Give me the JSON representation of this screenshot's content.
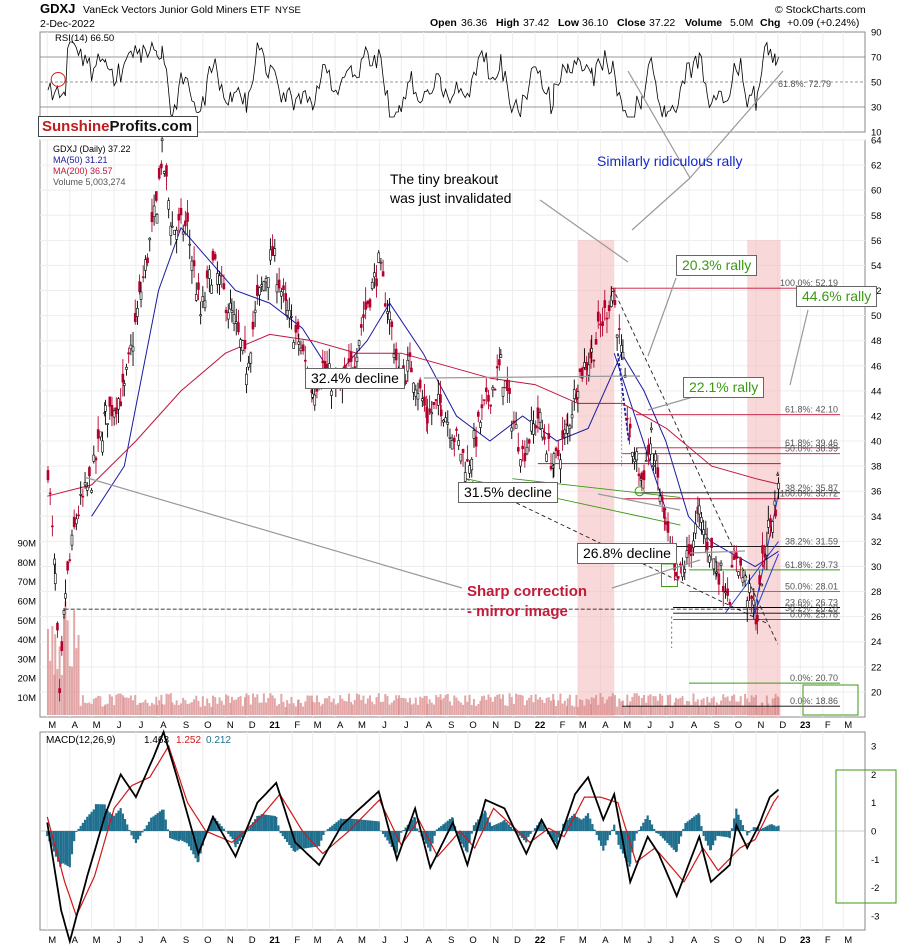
{
  "header": {
    "symbol": "GDXJ",
    "name": "VanEck Vectors Junior Gold Miners ETF",
    "exchange": "NYSE",
    "date": "2-Dec-2022",
    "open_label": "Open",
    "open": "36.36",
    "high_label": "High",
    "high": "37.42",
    "low_label": "Low",
    "low": "36.10",
    "close_label": "Close",
    "close": "37.22",
    "volume_label": "Volume",
    "volume": "5.0M",
    "chg_label": "Chg",
    "chg": "+0.09 (+0.24%)",
    "watermark": "© StockCharts.com"
  },
  "logo": {
    "part1": "Sunshine",
    "part2": "Profits.com"
  },
  "colors": {
    "price": "#000000",
    "ma50": "#1a1aa0",
    "ma200": "#c0143c",
    "volume": "#d98a8a",
    "macd": "#000000",
    "signal": "#d01818",
    "histogram": "#1f6f8f",
    "highlight": "#f2b8b8",
    "fib_green": "#3a9a12"
  },
  "chart_data": [
    {
      "type": "line",
      "panel": "RSI",
      "legend": "RSI(14) 66.50",
      "ylim": [
        10,
        90
      ],
      "yticks": [
        10,
        30,
        50,
        70,
        90
      ],
      "levels": [
        70,
        50,
        30
      ],
      "current": 66.5,
      "annotation": "61.8%: 72.79"
    },
    {
      "type": "candlestick",
      "panel": "price",
      "legend": [
        "GDXJ (Daily) 37.22",
        "MA(50) 31.21",
        "MA(200) 36.57",
        "Volume 5,003,274"
      ],
      "ylim": [
        18,
        64
      ],
      "yticks": [
        20,
        22,
        24,
        26,
        28,
        30,
        32,
        34,
        36,
        38,
        40,
        42,
        44,
        46,
        48,
        50,
        52,
        54,
        56,
        58,
        60,
        62,
        64
      ],
      "volume_ticks": [
        "10M",
        "20M",
        "30M",
        "40M",
        "50M",
        "60M",
        "70M",
        "80M",
        "90M"
      ],
      "x_labels": [
        "M",
        "A",
        "M",
        "J",
        "J",
        "A",
        "S",
        "O",
        "N",
        "D",
        "21",
        "F",
        "M",
        "A",
        "M",
        "J",
        "J",
        "A",
        "S",
        "O",
        "N",
        "D",
        "22",
        "F",
        "M",
        "A",
        "M",
        "J",
        "J",
        "A",
        "S",
        "O",
        "N",
        "D",
        "23",
        "F",
        "M"
      ],
      "series": [
        {
          "name": "GDXJ",
          "points": [
            [
              "2020-03-02",
              38
            ],
            [
              "2020-03-12",
              29
            ],
            [
              "2020-03-18",
              19
            ],
            [
              "2020-03-26",
              28
            ],
            [
              "2020-04-10",
              34
            ],
            [
              "2020-05-01",
              37
            ],
            [
              "2020-05-20",
              42
            ],
            [
              "2020-06-15",
              44
            ],
            [
              "2020-07-08",
              52
            ],
            [
              "2020-07-30",
              59
            ],
            [
              "2020-08-06",
              63
            ],
            [
              "2020-08-20",
              57
            ],
            [
              "2020-09-10",
              57
            ],
            [
              "2020-09-28",
              50
            ],
            [
              "2020-10-15",
              54
            ],
            [
              "2020-11-10",
              50
            ],
            [
              "2020-11-30",
              46
            ],
            [
              "2020-12-15",
              51
            ],
            [
              "2021-01-05",
              55
            ],
            [
              "2021-01-25",
              50
            ],
            [
              "2021-02-10",
              48
            ],
            [
              "2021-03-01",
              44
            ],
            [
              "2021-03-15",
              46
            ],
            [
              "2021-04-05",
              44
            ],
            [
              "2021-04-25",
              46
            ],
            [
              "2021-05-10",
              50
            ],
            [
              "2021-05-31",
              54
            ],
            [
              "2021-06-15",
              50
            ],
            [
              "2021-06-28",
              45
            ],
            [
              "2021-07-15",
              46
            ],
            [
              "2021-08-06",
              42
            ],
            [
              "2021-08-25",
              43
            ],
            [
              "2021-09-15",
              40
            ],
            [
              "2021-09-30",
              38
            ],
            [
              "2021-10-20",
              42
            ],
            [
              "2021-11-15",
              46
            ],
            [
              "2021-11-30",
              42
            ],
            [
              "2021-12-15",
              39
            ],
            [
              "2022-01-05",
              42
            ],
            [
              "2022-01-27",
              38
            ],
            [
              "2022-02-15",
              41
            ],
            [
              "2022-03-01",
              45
            ],
            [
              "2022-03-20",
              47
            ],
            [
              "2022-04-18",
              52
            ],
            [
              "2022-05-02",
              46
            ],
            [
              "2022-05-12",
              40
            ],
            [
              "2022-05-28",
              37
            ],
            [
              "2022-06-10",
              40
            ],
            [
              "2022-06-30",
              33
            ],
            [
              "2022-07-14",
              28.5
            ],
            [
              "2022-08-01",
              31
            ],
            [
              "2022-08-15",
              34
            ],
            [
              "2022-08-26",
              32
            ],
            [
              "2022-09-08",
              30
            ],
            [
              "2022-09-26",
              28
            ],
            [
              "2022-10-05",
              31
            ],
            [
              "2022-10-20",
              28
            ],
            [
              "2022-11-03",
              26
            ],
            [
              "2022-11-10",
              30
            ],
            [
              "2022-11-18",
              33
            ],
            [
              "2022-11-28",
              35
            ],
            [
              "2022-12-02",
              37.22
            ]
          ]
        },
        {
          "name": "MA(50)",
          "points": [
            [
              "2020-05-01",
              34
            ],
            [
              "2020-06-15",
              38
            ],
            [
              "2020-08-01",
              52
            ],
            [
              "2020-09-01",
              57
            ],
            [
              "2020-10-01",
              55
            ],
            [
              "2020-11-15",
              52
            ],
            [
              "2021-01-01",
              51
            ],
            [
              "2021-02-15",
              49
            ],
            [
              "2021-03-31",
              45
            ],
            [
              "2021-05-15",
              48
            ],
            [
              "2021-06-15",
              51
            ],
            [
              "2021-07-31",
              47
            ],
            [
              "2021-09-15",
              42
            ],
            [
              "2021-10-31",
              40
            ],
            [
              "2021-12-15",
              42
            ],
            [
              "2022-01-31",
              40
            ],
            [
              "2022-03-15",
              41
            ],
            [
              "2022-04-30",
              47
            ],
            [
              "2022-05-31",
              44
            ],
            [
              "2022-06-30",
              40
            ],
            [
              "2022-07-31",
              34
            ],
            [
              "2022-08-31",
              32
            ],
            [
              "2022-09-30",
              31
            ],
            [
              "2022-10-31",
              30
            ],
            [
              "2022-12-02",
              31.21
            ]
          ]
        },
        {
          "name": "MA(200)",
          "points": [
            [
              "2020-03-01",
              35.6
            ],
            [
              "2020-05-01",
              36.5
            ],
            [
              "2020-07-01",
              40
            ],
            [
              "2020-09-01",
              44
            ],
            [
              "2020-11-01",
              47
            ],
            [
              "2021-01-01",
              48.5
            ],
            [
              "2021-03-01",
              48
            ],
            [
              "2021-05-01",
              47
            ],
            [
              "2021-07-01",
              47
            ],
            [
              "2021-09-01",
              46
            ],
            [
              "2021-11-01",
              45
            ],
            [
              "2022-01-01",
              44.5
            ],
            [
              "2022-03-01",
              43
            ],
            [
              "2022-05-01",
              43
            ],
            [
              "2022-07-01",
              41
            ],
            [
              "2022-09-01",
              38
            ],
            [
              "2022-11-01",
              37
            ],
            [
              "2022-12-02",
              36.57
            ]
          ]
        }
      ],
      "fibonacci_labels": [
        {
          "text": "100.0%: 52.19",
          "y": 52.19
        },
        {
          "text": "61.8%: 42.10",
          "y": 42.1
        },
        {
          "text": "61.8%: 39.46",
          "y": 39.46
        },
        {
          "text": "50.0%: 38.99",
          "y": 38.99
        },
        {
          "text": "38.2%: 35.87",
          "y": 35.87
        },
        {
          "text": "100.0%: 35.72",
          "y": 35.4
        },
        {
          "text": "38.2%: 31.59",
          "y": 31.59
        },
        {
          "text": "61.8%: 29.73",
          "y": 29.73
        },
        {
          "text": "50.0%: 28.01",
          "y": 28.01
        },
        {
          "text": "23.6%: 26.73",
          "y": 26.73
        },
        {
          "text": "38.2%: 26.28",
          "y": 26.28
        },
        {
          "text": "0.0%: 25.78",
          "y": 25.78
        },
        {
          "text": "0.0%: 20.70",
          "y": 20.7
        },
        {
          "text": "0.0%: 18.86",
          "y": 18.86
        }
      ],
      "annotations": [
        "Similarly ridiculous rally",
        "The tiny breakout\nwas just invalidated",
        "20.3% rally",
        "44.6% rally",
        "32.4% decline",
        "22.1% rally",
        "31.5% decline",
        "26.8% decline",
        "Sharp correction\n- mirror image"
      ]
    },
    {
      "type": "line",
      "panel": "MACD",
      "legend": {
        "name": "MACD(12,26,9)",
        "macd": "1.463",
        "signal": "1.252",
        "histogram": "0.212"
      },
      "ylim": [
        -3.5,
        3.5
      ],
      "yticks": [
        3,
        2,
        1,
        0,
        -1,
        -2,
        -3
      ],
      "series": [
        {
          "name": "MACD",
          "points": [
            [
              "2020-03-01",
              0.3
            ],
            [
              "2020-03-20",
              -2.8
            ],
            [
              "2020-04-01",
              -3.9
            ],
            [
              "2020-04-25",
              -1.6
            ],
            [
              "2020-05-20",
              0.6
            ],
            [
              "2020-06-10",
              2.0
            ],
            [
              "2020-07-01",
              1.2
            ],
            [
              "2020-07-25",
              2.6
            ],
            [
              "2020-08-08",
              3.5
            ],
            [
              "2020-08-31",
              1.5
            ],
            [
              "2020-09-25",
              -0.8
            ],
            [
              "2020-10-15",
              0.5
            ],
            [
              "2020-11-15",
              -0.9
            ],
            [
              "2020-12-15",
              1.0
            ],
            [
              "2021-01-10",
              1.7
            ],
            [
              "2021-02-05",
              -0.4
            ],
            [
              "2021-03-10",
              -1.2
            ],
            [
              "2021-04-10",
              0.2
            ],
            [
              "2021-05-01",
              0.7
            ],
            [
              "2021-05-31",
              1.4
            ],
            [
              "2021-06-25",
              -1.0
            ],
            [
              "2021-07-20",
              0.8
            ],
            [
              "2021-08-10",
              -1.3
            ],
            [
              "2021-09-10",
              0.3
            ],
            [
              "2021-09-30",
              -1.2
            ],
            [
              "2021-10-25",
              1.1
            ],
            [
              "2021-11-20",
              0.8
            ],
            [
              "2021-12-20",
              -0.8
            ],
            [
              "2022-01-10",
              0.4
            ],
            [
              "2022-01-31",
              -0.6
            ],
            [
              "2022-02-25",
              1.3
            ],
            [
              "2022-03-15",
              1.9
            ],
            [
              "2022-04-05",
              0.4
            ],
            [
              "2022-04-20",
              1.3
            ],
            [
              "2022-05-12",
              -1.8
            ],
            [
              "2022-06-05",
              -0.2
            ],
            [
              "2022-06-20",
              -0.8
            ],
            [
              "2022-07-15",
              -2.3
            ],
            [
              "2022-08-15",
              -0.2
            ],
            [
              "2022-08-31",
              -1.8
            ],
            [
              "2022-09-26",
              -1.2
            ],
            [
              "2022-10-05",
              0.2
            ],
            [
              "2022-10-20",
              -0.6
            ],
            [
              "2022-11-05",
              0.2
            ],
            [
              "2022-11-20",
              1.2
            ],
            [
              "2022-12-02",
              1.463
            ]
          ]
        },
        {
          "name": "Signal",
          "points": [
            [
              "2020-03-01",
              0.5
            ],
            [
              "2020-03-25",
              -1.8
            ],
            [
              "2020-04-10",
              -3.0
            ],
            [
              "2020-05-05",
              -1.6
            ],
            [
              "2020-06-01",
              0.8
            ],
            [
              "2020-06-25",
              1.6
            ],
            [
              "2020-07-20",
              1.9
            ],
            [
              "2020-08-15",
              3.0
            ],
            [
              "2020-09-10",
              1.0
            ],
            [
              "2020-10-05",
              0.0
            ],
            [
              "2020-11-10",
              -0.4
            ],
            [
              "2020-12-20",
              0.5
            ],
            [
              "2021-01-15",
              1.3
            ],
            [
              "2021-02-15",
              0.0
            ],
            [
              "2021-03-15",
              -0.8
            ],
            [
              "2021-04-20",
              0.0
            ],
            [
              "2021-06-01",
              1.1
            ],
            [
              "2021-07-01",
              -0.5
            ],
            [
              "2021-07-25",
              0.4
            ],
            [
              "2021-08-20",
              -0.9
            ],
            [
              "2021-09-20",
              0.0
            ],
            [
              "2021-10-10",
              -0.6
            ],
            [
              "2021-11-05",
              0.8
            ],
            [
              "2021-12-25",
              -0.4
            ],
            [
              "2022-01-20",
              0.1
            ],
            [
              "2022-02-10",
              -0.2
            ],
            [
              "2022-03-10",
              1.2
            ],
            [
              "2022-04-01",
              1.2
            ],
            [
              "2022-04-25",
              1.0
            ],
            [
              "2022-05-20",
              -1.1
            ],
            [
              "2022-06-15",
              -0.6
            ],
            [
              "2022-07-25",
              -1.8
            ],
            [
              "2022-08-20",
              -0.6
            ],
            [
              "2022-09-10",
              -1.4
            ],
            [
              "2022-10-10",
              -0.6
            ],
            [
              "2022-10-31",
              -0.3
            ],
            [
              "2022-11-25",
              1.0
            ],
            [
              "2022-12-02",
              1.252
            ]
          ]
        }
      ]
    }
  ]
}
